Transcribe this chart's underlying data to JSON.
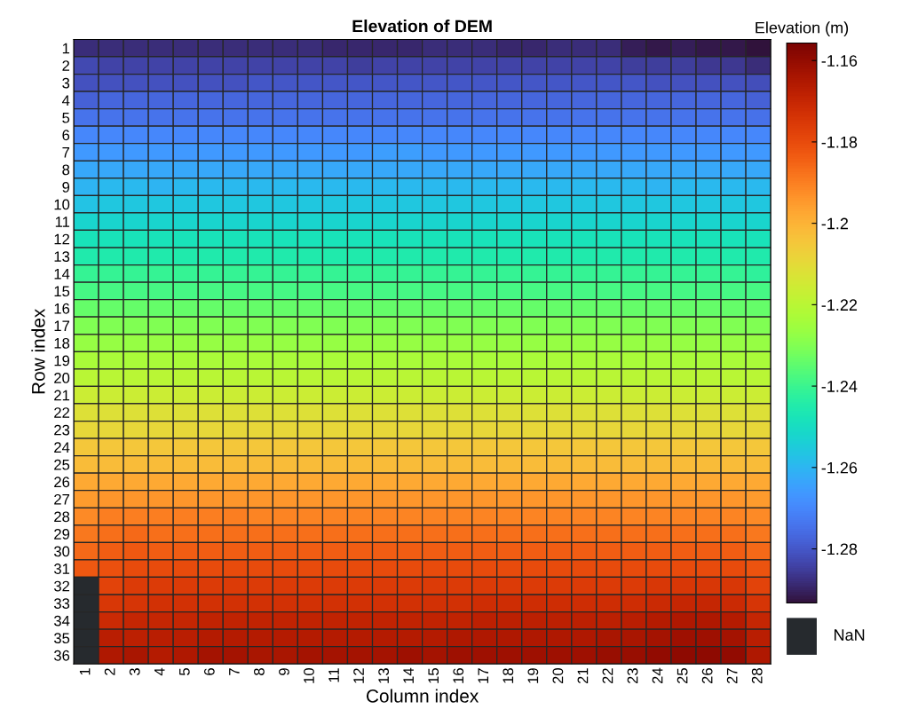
{
  "chart_data": {
    "type": "heatmap",
    "title": "Elevation of DEM",
    "xlabel": "Column index",
    "ylabel": "Row index",
    "clabel": "Elevation (m)",
    "categories": [
      "1",
      "2",
      "3",
      "4",
      "5",
      "6",
      "7",
      "8",
      "9",
      "10",
      "11",
      "12",
      "13",
      "14",
      "15",
      "16",
      "17",
      "18",
      "19",
      "20",
      "21",
      "22",
      "23",
      "24",
      "25",
      "26",
      "27",
      "28"
    ],
    "y_categories": [
      "1",
      "2",
      "3",
      "4",
      "5",
      "6",
      "7",
      "8",
      "9",
      "10",
      "11",
      "12",
      "13",
      "14",
      "15",
      "16",
      "17",
      "18",
      "19",
      "20",
      "21",
      "22",
      "23",
      "24",
      "25",
      "26",
      "27",
      "28",
      "29",
      "30",
      "31",
      "32",
      "33",
      "34",
      "35",
      "36"
    ],
    "clim": [
      -1.2933,
      -1.1557
    ],
    "cticks": [
      -1.28,
      -1.26,
      -1.24,
      -1.22,
      -1.2,
      -1.18,
      -1.16
    ],
    "annotations": [
      "NaN"
    ],
    "cells": [
      [
        -1.288,
        -1.288,
        -1.288,
        -1.288,
        -1.288,
        -1.288,
        -1.288,
        -1.288,
        -1.288,
        -1.288,
        -1.289,
        -1.289,
        -1.289,
        -1.289,
        -1.288,
        -1.288,
        -1.288,
        -1.289,
        -1.289,
        -1.288,
        -1.288,
        -1.288,
        -1.291,
        -1.292,
        -1.291,
        -1.292,
        -1.292,
        -1.293
      ],
      [
        -1.283,
        -1.284,
        -1.284,
        -1.284,
        -1.284,
        -1.284,
        -1.284,
        -1.284,
        -1.284,
        -1.284,
        -1.284,
        -1.285,
        -1.284,
        -1.284,
        -1.284,
        -1.284,
        -1.284,
        -1.284,
        -1.284,
        -1.284,
        -1.284,
        -1.284,
        -1.285,
        -1.285,
        -1.285,
        -1.286,
        -1.286,
        -1.288
      ],
      [
        -1.281,
        -1.281,
        -1.281,
        -1.281,
        -1.281,
        -1.281,
        -1.281,
        -1.28,
        -1.28,
        -1.28,
        -1.28,
        -1.28,
        -1.28,
        -1.28,
        -1.28,
        -1.28,
        -1.28,
        -1.28,
        -1.28,
        -1.28,
        -1.28,
        -1.28,
        -1.28,
        -1.281,
        -1.281,
        -1.281,
        -1.281,
        -1.282
      ],
      [
        -1.278,
        -1.277,
        -1.277,
        -1.277,
        -1.277,
        -1.277,
        -1.277,
        -1.277,
        -1.277,
        -1.277,
        -1.277,
        -1.277,
        -1.277,
        -1.277,
        -1.277,
        -1.277,
        -1.277,
        -1.277,
        -1.277,
        -1.277,
        -1.277,
        -1.277,
        -1.277,
        -1.277,
        -1.277,
        -1.277,
        -1.277,
        -1.278
      ],
      [
        -1.274,
        -1.274,
        -1.274,
        -1.274,
        -1.274,
        -1.274,
        -1.274,
        -1.274,
        -1.274,
        -1.274,
        -1.274,
        -1.274,
        -1.274,
        -1.274,
        -1.274,
        -1.274,
        -1.274,
        -1.274,
        -1.274,
        -1.274,
        -1.274,
        -1.274,
        -1.274,
        -1.274,
        -1.274,
        -1.274,
        -1.274,
        -1.275
      ],
      [
        -1.27,
        -1.27,
        -1.27,
        -1.27,
        -1.27,
        -1.27,
        -1.27,
        -1.27,
        -1.27,
        -1.27,
        -1.27,
        -1.27,
        -1.27,
        -1.27,
        -1.27,
        -1.27,
        -1.27,
        -1.27,
        -1.27,
        -1.27,
        -1.27,
        -1.27,
        -1.27,
        -1.27,
        -1.27,
        -1.27,
        -1.27,
        -1.27
      ],
      [
        -1.266,
        -1.266,
        -1.266,
        -1.266,
        -1.266,
        -1.266,
        -1.266,
        -1.266,
        -1.266,
        -1.266,
        -1.266,
        -1.266,
        -1.265,
        -1.265,
        -1.266,
        -1.266,
        -1.266,
        -1.266,
        -1.266,
        -1.266,
        -1.266,
        -1.266,
        -1.266,
        -1.266,
        -1.266,
        -1.266,
        -1.266,
        -1.266
      ],
      [
        -1.263,
        -1.263,
        -1.263,
        -1.263,
        -1.263,
        -1.263,
        -1.263,
        -1.263,
        -1.263,
        -1.263,
        -1.263,
        -1.263,
        -1.263,
        -1.263,
        -1.263,
        -1.263,
        -1.263,
        -1.263,
        -1.263,
        -1.263,
        -1.263,
        -1.263,
        -1.263,
        -1.263,
        -1.263,
        -1.263,
        -1.263,
        -1.263
      ],
      [
        -1.26,
        -1.259,
        -1.259,
        -1.26,
        -1.259,
        -1.259,
        -1.259,
        -1.259,
        -1.259,
        -1.259,
        -1.259,
        -1.259,
        -1.259,
        -1.259,
        -1.259,
        -1.259,
        -1.259,
        -1.259,
        -1.259,
        -1.259,
        -1.259,
        -1.259,
        -1.259,
        -1.26,
        -1.259,
        -1.259,
        -1.259,
        -1.259
      ],
      [
        -1.257,
        -1.256,
        -1.256,
        -1.256,
        -1.256,
        -1.256,
        -1.256,
        -1.256,
        -1.256,
        -1.256,
        -1.256,
        -1.256,
        -1.256,
        -1.256,
        -1.256,
        -1.256,
        -1.256,
        -1.256,
        -1.256,
        -1.256,
        -1.256,
        -1.256,
        -1.256,
        -1.256,
        -1.256,
        -1.256,
        -1.256,
        -1.256
      ],
      [
        -1.252,
        -1.252,
        -1.252,
        -1.252,
        -1.252,
        -1.252,
        -1.252,
        -1.252,
        -1.252,
        -1.252,
        -1.252,
        -1.252,
        -1.252,
        -1.252,
        -1.252,
        -1.252,
        -1.252,
        -1.252,
        -1.252,
        -1.252,
        -1.252,
        -1.252,
        -1.252,
        -1.252,
        -1.252,
        -1.252,
        -1.252,
        -1.252
      ],
      [
        -1.248,
        -1.248,
        -1.248,
        -1.248,
        -1.248,
        -1.248,
        -1.248,
        -1.248,
        -1.248,
        -1.248,
        -1.248,
        -1.248,
        -1.248,
        -1.248,
        -1.248,
        -1.248,
        -1.248,
        -1.248,
        -1.248,
        -1.248,
        -1.248,
        -1.248,
        -1.248,
        -1.248,
        -1.248,
        -1.248,
        -1.248,
        -1.248
      ],
      [
        -1.245,
        -1.245,
        -1.245,
        -1.245,
        -1.245,
        -1.245,
        -1.245,
        -1.245,
        -1.245,
        -1.245,
        -1.245,
        -1.245,
        -1.245,
        -1.245,
        -1.245,
        -1.245,
        -1.245,
        -1.245,
        -1.245,
        -1.245,
        -1.245,
        -1.245,
        -1.245,
        -1.245,
        -1.245,
        -1.245,
        -1.245,
        -1.245
      ],
      [
        -1.241,
        -1.241,
        -1.241,
        -1.241,
        -1.241,
        -1.241,
        -1.241,
        -1.241,
        -1.241,
        -1.241,
        -1.241,
        -1.241,
        -1.241,
        -1.241,
        -1.241,
        -1.241,
        -1.241,
        -1.241,
        -1.241,
        -1.241,
        -1.241,
        -1.241,
        -1.241,
        -1.241,
        -1.241,
        -1.241,
        -1.241,
        -1.242
      ],
      [
        -1.238,
        -1.238,
        -1.238,
        -1.238,
        -1.238,
        -1.238,
        -1.238,
        -1.238,
        -1.238,
        -1.238,
        -1.238,
        -1.238,
        -1.238,
        -1.238,
        -1.238,
        -1.238,
        -1.238,
        -1.238,
        -1.238,
        -1.238,
        -1.238,
        -1.238,
        -1.238,
        -1.238,
        -1.238,
        -1.238,
        -1.238,
        -1.238
      ],
      [
        -1.234,
        -1.234,
        -1.234,
        -1.234,
        -1.234,
        -1.234,
        -1.234,
        -1.234,
        -1.234,
        -1.234,
        -1.234,
        -1.234,
        -1.234,
        -1.234,
        -1.234,
        -1.234,
        -1.234,
        -1.234,
        -1.234,
        -1.234,
        -1.234,
        -1.234,
        -1.234,
        -1.234,
        -1.234,
        -1.234,
        -1.234,
        -1.234
      ],
      [
        -1.23,
        -1.23,
        -1.23,
        -1.23,
        -1.23,
        -1.23,
        -1.23,
        -1.23,
        -1.23,
        -1.23,
        -1.23,
        -1.23,
        -1.23,
        -1.23,
        -1.23,
        -1.23,
        -1.23,
        -1.23,
        -1.23,
        -1.23,
        -1.23,
        -1.23,
        -1.23,
        -1.23,
        -1.23,
        -1.23,
        -1.23,
        -1.23
      ],
      [
        -1.227,
        -1.227,
        -1.227,
        -1.227,
        -1.227,
        -1.227,
        -1.227,
        -1.227,
        -1.227,
        -1.227,
        -1.227,
        -1.227,
        -1.227,
        -1.227,
        -1.227,
        -1.227,
        -1.227,
        -1.227,
        -1.227,
        -1.227,
        -1.227,
        -1.227,
        -1.227,
        -1.227,
        -1.227,
        -1.227,
        -1.227,
        -1.227
      ],
      [
        -1.223,
        -1.223,
        -1.223,
        -1.223,
        -1.223,
        -1.223,
        -1.223,
        -1.223,
        -1.223,
        -1.223,
        -1.223,
        -1.223,
        -1.223,
        -1.223,
        -1.223,
        -1.223,
        -1.223,
        -1.223,
        -1.223,
        -1.223,
        -1.223,
        -1.223,
        -1.223,
        -1.223,
        -1.223,
        -1.223,
        -1.223,
        -1.223
      ],
      [
        -1.22,
        -1.22,
        -1.22,
        -1.22,
        -1.22,
        -1.22,
        -1.22,
        -1.22,
        -1.22,
        -1.22,
        -1.22,
        -1.22,
        -1.22,
        -1.22,
        -1.22,
        -1.22,
        -1.22,
        -1.22,
        -1.22,
        -1.22,
        -1.22,
        -1.22,
        -1.22,
        -1.22,
        -1.22,
        -1.22,
        -1.22,
        -1.22
      ],
      [
        -1.216,
        -1.216,
        -1.216,
        -1.216,
        -1.216,
        -1.216,
        -1.216,
        -1.216,
        -1.216,
        -1.216,
        -1.216,
        -1.216,
        -1.216,
        -1.216,
        -1.216,
        -1.216,
        -1.216,
        -1.216,
        -1.216,
        -1.216,
        -1.216,
        -1.216,
        -1.216,
        -1.216,
        -1.216,
        -1.216,
        -1.216,
        -1.216
      ],
      [
        -1.212,
        -1.212,
        -1.212,
        -1.212,
        -1.212,
        -1.212,
        -1.212,
        -1.212,
        -1.212,
        -1.212,
        -1.212,
        -1.212,
        -1.212,
        -1.212,
        -1.212,
        -1.212,
        -1.212,
        -1.212,
        -1.212,
        -1.212,
        -1.212,
        -1.212,
        -1.212,
        -1.212,
        -1.212,
        -1.212,
        -1.212,
        -1.212
      ],
      [
        -1.209,
        -1.209,
        -1.209,
        -1.209,
        -1.209,
        -1.209,
        -1.209,
        -1.209,
        -1.209,
        -1.209,
        -1.209,
        -1.209,
        -1.209,
        -1.209,
        -1.209,
        -1.209,
        -1.209,
        -1.209,
        -1.209,
        -1.209,
        -1.209,
        -1.209,
        -1.209,
        -1.209,
        -1.209,
        -1.209,
        -1.209,
        -1.209
      ],
      [
        -1.205,
        -1.205,
        -1.205,
        -1.205,
        -1.205,
        -1.205,
        -1.205,
        -1.205,
        -1.205,
        -1.205,
        -1.205,
        -1.205,
        -1.205,
        -1.205,
        -1.205,
        -1.205,
        -1.205,
        -1.205,
        -1.205,
        -1.205,
        -1.205,
        -1.205,
        -1.205,
        -1.205,
        -1.205,
        -1.205,
        -1.205,
        -1.205
      ],
      [
        -1.202,
        -1.202,
        -1.202,
        -1.202,
        -1.202,
        -1.202,
        -1.202,
        -1.202,
        -1.202,
        -1.202,
        -1.202,
        -1.202,
        -1.202,
        -1.202,
        -1.202,
        -1.202,
        -1.202,
        -1.202,
        -1.202,
        -1.202,
        -1.202,
        -1.202,
        -1.202,
        -1.202,
        -1.202,
        -1.202,
        -1.202,
        -1.202
      ],
      [
        -1.198,
        -1.198,
        -1.198,
        -1.198,
        -1.198,
        -1.198,
        -1.198,
        -1.198,
        -1.198,
        -1.198,
        -1.198,
        -1.198,
        -1.198,
        -1.198,
        -1.198,
        -1.198,
        -1.198,
        -1.198,
        -1.198,
        -1.198,
        -1.198,
        -1.198,
        -1.198,
        -1.198,
        -1.198,
        -1.198,
        -1.198,
        -1.198
      ],
      [
        -1.195,
        -1.194,
        -1.194,
        -1.194,
        -1.194,
        -1.194,
        -1.194,
        -1.194,
        -1.194,
        -1.194,
        -1.194,
        -1.194,
        -1.194,
        -1.194,
        -1.194,
        -1.194,
        -1.194,
        -1.194,
        -1.194,
        -1.194,
        -1.194,
        -1.194,
        -1.194,
        -1.194,
        -1.194,
        -1.194,
        -1.194,
        -1.195
      ],
      [
        -1.192,
        -1.19,
        -1.19,
        -1.19,
        -1.19,
        -1.19,
        -1.19,
        -1.191,
        -1.191,
        -1.191,
        -1.191,
        -1.191,
        -1.191,
        -1.191,
        -1.191,
        -1.191,
        -1.191,
        -1.191,
        -1.191,
        -1.191,
        -1.191,
        -1.191,
        -1.191,
        -1.191,
        -1.191,
        -1.191,
        -1.191,
        -1.192
      ],
      [
        -1.189,
        -1.187,
        -1.186,
        -1.187,
        -1.187,
        -1.187,
        -1.187,
        -1.187,
        -1.187,
        -1.187,
        -1.187,
        -1.187,
        -1.187,
        -1.187,
        -1.187,
        -1.187,
        -1.187,
        -1.187,
        -1.187,
        -1.187,
        -1.187,
        -1.187,
        -1.187,
        -1.187,
        -1.187,
        -1.187,
        -1.187,
        -1.189
      ],
      [
        -1.186,
        -1.184,
        -1.183,
        -1.184,
        -1.184,
        -1.184,
        -1.184,
        -1.184,
        -1.184,
        -1.184,
        -1.184,
        -1.184,
        -1.184,
        -1.184,
        -1.184,
        -1.184,
        -1.184,
        -1.184,
        -1.184,
        -1.184,
        -1.184,
        -1.184,
        -1.184,
        -1.184,
        -1.184,
        -1.184,
        -1.184,
        -1.186
      ],
      [
        -1.183,
        -1.181,
        -1.18,
        -1.18,
        -1.18,
        -1.18,
        -1.18,
        -1.18,
        -1.18,
        -1.18,
        -1.18,
        -1.18,
        -1.18,
        -1.18,
        -1.18,
        -1.18,
        -1.18,
        -1.18,
        -1.18,
        -1.18,
        -1.18,
        -1.18,
        -1.18,
        -1.18,
        -1.18,
        -1.18,
        -1.18,
        -1.182
      ],
      [
        null,
        -1.178,
        -1.176,
        -1.176,
        -1.176,
        -1.176,
        -1.176,
        -1.176,
        -1.176,
        -1.176,
        -1.176,
        -1.176,
        -1.176,
        -1.176,
        -1.176,
        -1.176,
        -1.176,
        -1.176,
        -1.176,
        -1.176,
        -1.176,
        -1.176,
        -1.176,
        -1.175,
        -1.175,
        -1.175,
        -1.175,
        -1.178
      ],
      [
        null,
        -1.175,
        -1.174,
        -1.173,
        -1.173,
        -1.173,
        -1.173,
        -1.173,
        -1.173,
        -1.173,
        -1.173,
        -1.173,
        -1.173,
        -1.173,
        -1.173,
        -1.173,
        -1.172,
        -1.172,
        -1.172,
        -1.172,
        -1.172,
        -1.172,
        -1.172,
        -1.171,
        -1.17,
        -1.17,
        -1.171,
        -1.174
      ],
      [
        null,
        -1.171,
        -1.17,
        -1.17,
        -1.17,
        -1.169,
        -1.169,
        -1.169,
        -1.169,
        -1.169,
        -1.169,
        -1.169,
        -1.169,
        -1.169,
        -1.169,
        -1.169,
        -1.168,
        -1.168,
        -1.168,
        -1.168,
        -1.168,
        -1.168,
        -1.167,
        -1.166,
        -1.165,
        -1.165,
        -1.166,
        -1.17
      ],
      [
        null,
        -1.167,
        -1.168,
        -1.167,
        -1.167,
        -1.166,
        -1.166,
        -1.166,
        -1.166,
        -1.166,
        -1.166,
        -1.166,
        -1.166,
        -1.166,
        -1.166,
        -1.165,
        -1.165,
        -1.165,
        -1.165,
        -1.165,
        -1.165,
        -1.164,
        -1.164,
        -1.163,
        -1.162,
        -1.162,
        -1.163,
        -1.167
      ],
      [
        null,
        -1.165,
        -1.164,
        -1.166,
        -1.165,
        -1.163,
        -1.163,
        -1.164,
        -1.164,
        -1.163,
        -1.163,
        -1.163,
        -1.163,
        -1.162,
        -1.163,
        -1.162,
        -1.162,
        -1.162,
        -1.162,
        -1.162,
        -1.162,
        -1.161,
        -1.161,
        -1.16,
        -1.159,
        -1.159,
        -1.16,
        -1.165
      ]
    ]
  }
}
